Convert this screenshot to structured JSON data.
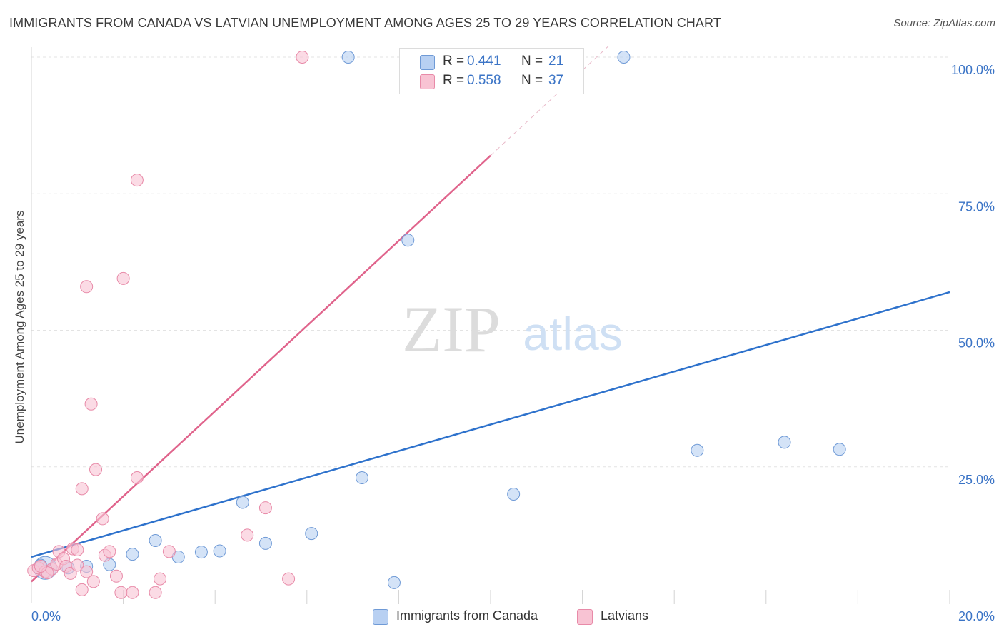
{
  "title": "IMMIGRANTS FROM CANADA VS LATVIAN UNEMPLOYMENT AMONG AGES 25 TO 29 YEARS CORRELATION CHART",
  "source": "Source: ZipAtlas.com",
  "watermark": {
    "zip": "ZIP",
    "atlas": "atlas"
  },
  "colors": {
    "blue_fill": "#b8d0f2",
    "blue_stroke": "#6f9ad6",
    "blue_line": "#2e72cc",
    "pink_fill": "#f8c3d3",
    "pink_stroke": "#e88aa8",
    "pink_line": "#e0648c",
    "tick_label": "#3b74c6",
    "grid": "#e3e3e3"
  },
  "legend": {
    "rows": [
      {
        "r_label": "R = ",
        "r_value": "0.441",
        "n_label": "N = ",
        "n_value": "21"
      },
      {
        "r_label": "R = ",
        "r_value": "0.558",
        "n_label": "N = ",
        "n_value": "37"
      }
    ]
  },
  "chart_data": {
    "type": "scatter",
    "title": "IMMIGRANTS FROM CANADA VS LATVIAN UNEMPLOYMENT AMONG AGES 25 TO 29 YEARS CORRELATION CHART",
    "xlabel": "",
    "ylabel": "Unemployment Among Ages 25 to 29 years",
    "xlim": [
      0,
      20
    ],
    "ylim": [
      0,
      105
    ],
    "x_tick_labels": [
      "0.0%",
      "20.0%"
    ],
    "y_ticks": [
      25,
      50,
      75,
      100
    ],
    "y_tick_labels": [
      "25.0%",
      "50.0%",
      "75.0%",
      "100.0%"
    ],
    "grid": true,
    "legend_position": "bottom-center",
    "series": [
      {
        "name": "Immigrants from Canada",
        "color": "#b8d0f2",
        "r": 0.441,
        "n": 21,
        "points": [
          [
            0.2,
            7.0
          ],
          [
            0.8,
            6.5
          ],
          [
            1.2,
            6.8
          ],
          [
            1.7,
            7.1
          ],
          [
            2.2,
            9.0
          ],
          [
            2.7,
            11.5
          ],
          [
            3.2,
            8.5
          ],
          [
            3.7,
            9.4
          ],
          [
            4.1,
            9.6
          ],
          [
            4.6,
            18.5
          ],
          [
            5.1,
            11.0
          ],
          [
            6.1,
            12.8
          ],
          [
            7.2,
            23.0
          ],
          [
            7.9,
            3.8
          ],
          [
            8.2,
            66.5
          ],
          [
            10.5,
            20.0
          ],
          [
            14.5,
            28.0
          ],
          [
            16.4,
            29.5
          ],
          [
            17.6,
            28.2
          ],
          [
            6.9,
            100.0
          ],
          [
            12.9,
            100.0
          ]
        ],
        "trendline": {
          "x": [
            0,
            20
          ],
          "y": [
            8.5,
            57.0
          ]
        }
      },
      {
        "name": "Latvians",
        "color": "#f8c3d3",
        "r": 0.558,
        "n": 37,
        "points": [
          [
            0.05,
            6.0
          ],
          [
            0.15,
            6.5
          ],
          [
            0.3,
            5.8
          ],
          [
            0.45,
            6.3
          ],
          [
            0.55,
            7.2
          ],
          [
            0.6,
            9.5
          ],
          [
            0.7,
            8.2
          ],
          [
            0.75,
            6.8
          ],
          [
            0.85,
            5.5
          ],
          [
            0.9,
            10.0
          ],
          [
            1.0,
            7.0
          ],
          [
            1.1,
            2.5
          ],
          [
            1.1,
            21.0
          ],
          [
            1.2,
            5.8
          ],
          [
            1.2,
            58.0
          ],
          [
            1.3,
            36.5
          ],
          [
            1.35,
            4.0
          ],
          [
            1.4,
            24.5
          ],
          [
            1.55,
            15.5
          ],
          [
            1.6,
            8.8
          ],
          [
            1.7,
            9.5
          ],
          [
            1.85,
            5.0
          ],
          [
            1.95,
            2.0
          ],
          [
            2.0,
            59.5
          ],
          [
            2.2,
            2.0
          ],
          [
            2.3,
            77.5
          ],
          [
            2.3,
            23.0
          ],
          [
            2.7,
            2.0
          ],
          [
            2.8,
            4.5
          ],
          [
            3.0,
            9.5
          ],
          [
            4.7,
            12.5
          ],
          [
            5.1,
            17.5
          ],
          [
            5.6,
            4.5
          ],
          [
            5.9,
            100.0
          ],
          [
            0.35,
            5.6
          ],
          [
            0.2,
            6.8
          ],
          [
            1.0,
            9.8
          ]
        ],
        "trendline": {
          "x": [
            0,
            10
          ],
          "y": [
            4.0,
            82.0
          ]
        }
      }
    ]
  }
}
